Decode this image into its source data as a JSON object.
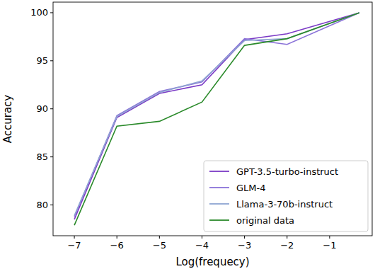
{
  "chart_data": {
    "type": "line",
    "x_label": "Log(frequecy)",
    "y_label": "Accuracy",
    "x": [
      -7,
      -6,
      -5,
      -4,
      -3,
      -2,
      -0.3
    ],
    "series": [
      {
        "name": "GPT-3.5-turbo-instruct",
        "color": "#7b3ac6",
        "values": [
          78.5,
          89.1,
          91.6,
          92.5,
          97.2,
          97.8,
          100
        ]
      },
      {
        "name": "GLM-4",
        "color": "#8a72d8",
        "values": [
          78.8,
          89.3,
          91.8,
          92.8,
          97.3,
          96.7,
          100
        ]
      },
      {
        "name": "Llama-3-70b-instruct",
        "color": "#8ea5d2",
        "values": [
          78.9,
          89.2,
          91.7,
          92.9,
          97.1,
          97.3,
          100
        ]
      },
      {
        "name": "original data",
        "color": "#2a8a2a",
        "values": [
          77.9,
          88.2,
          88.7,
          90.7,
          96.6,
          97.3,
          100
        ]
      }
    ],
    "xlim": [
      -7.5,
      0.0
    ],
    "ylim": [
      76.8,
      101.1
    ],
    "xticks": [
      {
        "value": -7,
        "label": "−7"
      },
      {
        "value": -6,
        "label": "−6"
      },
      {
        "value": -5,
        "label": "−5"
      },
      {
        "value": -4,
        "label": "−4"
      },
      {
        "value": -3,
        "label": "−3"
      },
      {
        "value": -2,
        "label": "−2"
      },
      {
        "value": -1,
        "label": "−1"
      }
    ],
    "yticks": [
      80,
      85,
      90,
      95,
      100
    ],
    "grid": false,
    "legend": "lower right"
  }
}
